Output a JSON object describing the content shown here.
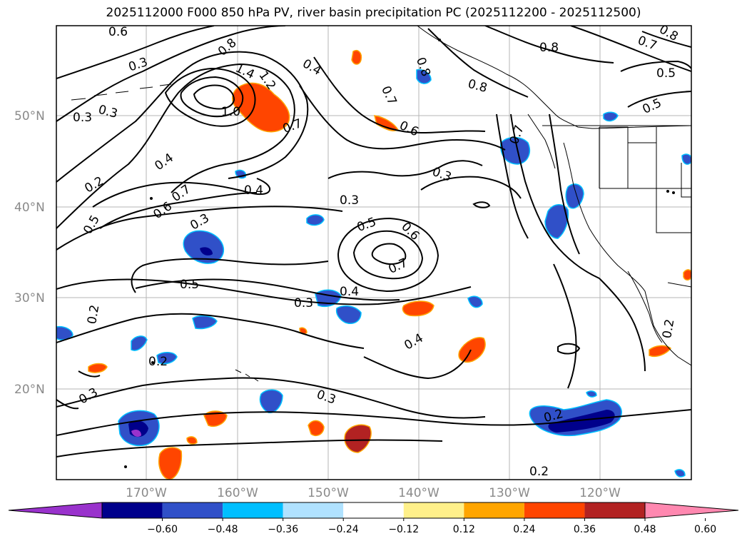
{
  "title": "2025112000 F000 850 hPa PV, river basin precipitation PC (2025112200 - 2025112500)",
  "lat_labels": [
    "50°N",
    "40°N",
    "30°N",
    "20°N"
  ],
  "lon_labels": [
    "170°W",
    "160°W",
    "150°W",
    "140°W",
    "130°W",
    "120°W"
  ],
  "contour_labels": [
    "0.6",
    "0.8",
    "0.3",
    "1.4",
    "1.2",
    "1.0",
    "0.4",
    "0.7",
    "0.3",
    "0.3",
    "0.4",
    "0.2",
    "0.7",
    "0.6",
    "0.5",
    "0.3",
    "0.4",
    "0.3",
    "0.3",
    "0.5",
    "0.6",
    "0.7",
    "0.5",
    "0.3",
    "0.4",
    "0.2",
    "0.4",
    "0.3",
    "0.3",
    "0.2",
    "0.2",
    "0.8",
    "0.8",
    "0.8",
    "0.7",
    "0.6",
    "0.8",
    "0.7",
    "0.5",
    "0.5",
    "0.7",
    "0.2",
    "0.2"
  ],
  "colorbar": {
    "ticks": [
      "−0.60",
      "−0.48",
      "−0.36",
      "−0.24",
      "−0.12",
      "0.12",
      "0.24",
      "0.36",
      "0.48",
      "0.60"
    ],
    "colors": [
      "#9932cc",
      "#00008b",
      "#3050c8",
      "#00bfff",
      "#b0e2ff",
      "#ffffff",
      "#fff08a",
      "#ffa500",
      "#ff4500",
      "#b22222",
      "#ff88b0"
    ]
  },
  "legend_colors": {
    "neg_strong": "#00008b",
    "neg_mid": "#3050c8",
    "neg_weak": "#00bfff",
    "neg_light": "#b0e2ff",
    "pos_light": "#fff08a",
    "pos_weak": "#ffa500",
    "pos_mid": "#ff4500",
    "pos_strong": "#b22222",
    "purple": "#9932cc"
  }
}
